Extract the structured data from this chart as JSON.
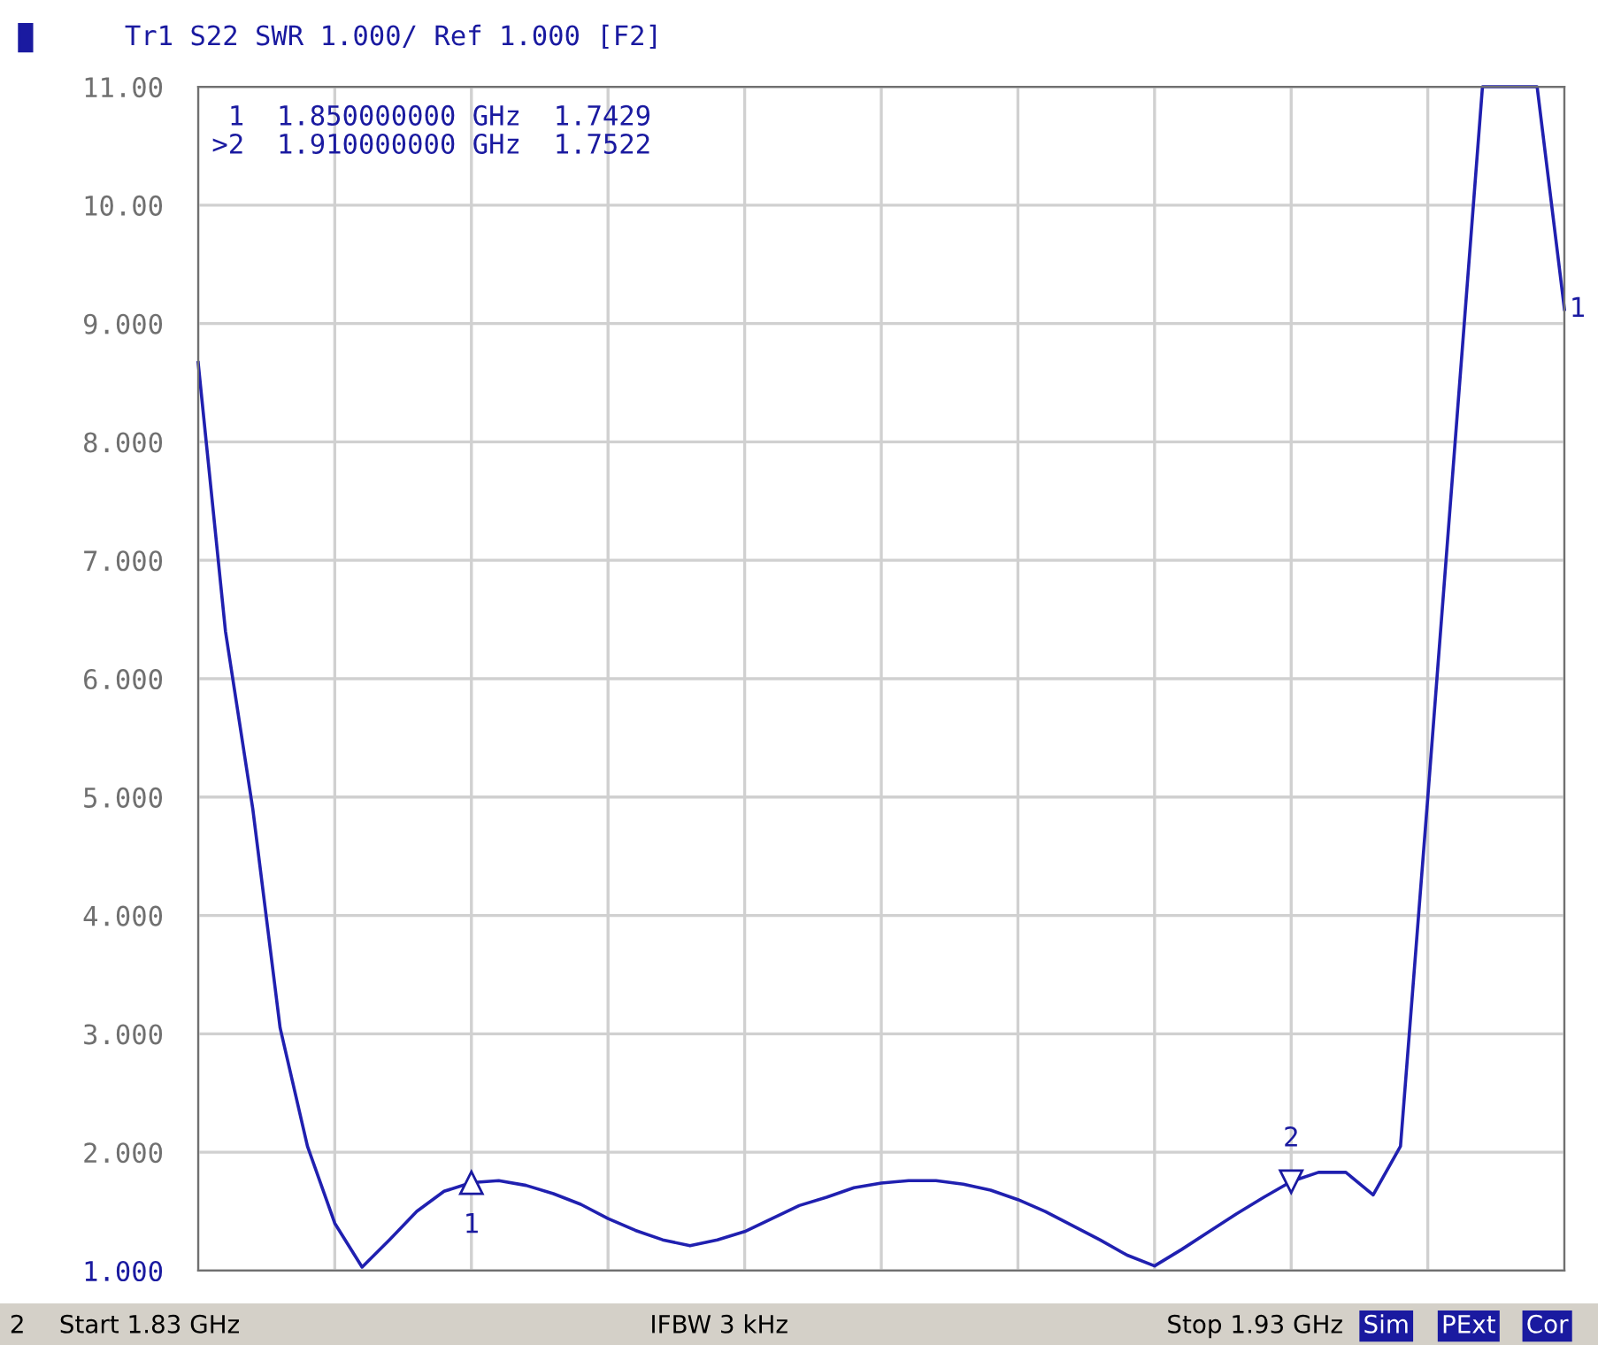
{
  "chart_data": {
    "type": "line",
    "title": "Tr1 S22 SWR 1.000/ Ref 1.000 [F2]",
    "categories": [
      null,
      null,
      null,
      null,
      null,
      null,
      null,
      null,
      null,
      null,
      null,
      null,
      null,
      null,
      null,
      null,
      null,
      null,
      null,
      null,
      null,
      null,
      null,
      null,
      null,
      null,
      null,
      null,
      null,
      null,
      null,
      null,
      null,
      null,
      null,
      null,
      null,
      null,
      null,
      null,
      null,
      null,
      null,
      null,
      null,
      null,
      null,
      null,
      null,
      null,
      null
    ],
    "ylim": [
      1,
      11
    ],
    "yticks": [
      {
        "value": 1,
        "label": "1.000"
      },
      {
        "value": 2,
        "label": "2.000"
      },
      {
        "value": 3,
        "label": "3.000"
      },
      {
        "value": 4,
        "label": "4.000"
      },
      {
        "value": 5,
        "label": "5.000"
      },
      {
        "value": 6,
        "label": "6.000"
      },
      {
        "value": 7,
        "label": "7.000"
      },
      {
        "value": 8,
        "label": "8.000"
      },
      {
        "value": 9,
        "label": "9.000"
      },
      {
        "value": 10,
        "label": "10.00"
      },
      {
        "value": 11,
        "label": "11.00"
      }
    ],
    "tick_labels": "y",
    "grid": true,
    "line_style": "solid",
    "series": [
      {
        "color": "#2020b0",
        "values": [
          8.67,
          6.4,
          4.9,
          3.05,
          2.05,
          1.4,
          1.03,
          1.26,
          1.5,
          1.67,
          1.7429,
          1.76,
          1.72,
          1.65,
          1.56,
          1.44,
          1.34,
          1.26,
          1.21,
          1.26,
          1.33,
          1.44,
          1.55,
          1.62,
          1.7,
          1.74,
          1.76,
          1.76,
          1.73,
          1.68,
          1.6,
          1.5,
          1.38,
          1.26,
          1.13,
          1.04,
          1.18,
          1.33,
          1.48,
          1.62,
          1.7522,
          1.83,
          1.83,
          1.64,
          2.05,
          5.0,
          8.0,
          11.0,
          11.0,
          11.0,
          9.12
        ]
      }
    ],
    "annotations": [
      " 1  1.850000000 GHz  1.7429",
      ">2  1.910000000 GHz  1.7522",
      "1",
      "2",
      "1",
      "2",
      "Start 1.83 GHz",
      "IFBW 3 kHz",
      "Stop 1.93 GHz",
      "Sim",
      "PExt",
      "Cor"
    ]
  }
}
